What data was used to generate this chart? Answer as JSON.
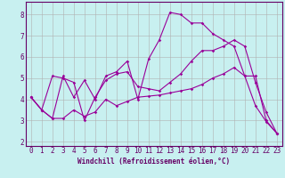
{
  "xlabel": "Windchill (Refroidissement éolien,°C)",
  "bg_color": "#c8f0f0",
  "line_color": "#990099",
  "grid_color": "#b0b0b0",
  "axis_color": "#660066",
  "spine_color": "#660066",
  "xlim": [
    -0.5,
    23.5
  ],
  "ylim": [
    1.8,
    8.6
  ],
  "xticks": [
    0,
    1,
    2,
    3,
    4,
    5,
    6,
    7,
    8,
    9,
    10,
    11,
    12,
    13,
    14,
    15,
    16,
    17,
    18,
    19,
    20,
    21,
    22,
    23
  ],
  "yticks": [
    2,
    3,
    4,
    5,
    6,
    7,
    8
  ],
  "line1_x": [
    0,
    1,
    2,
    3,
    4,
    5,
    6,
    7,
    8,
    9,
    10,
    11,
    12,
    13,
    14,
    15,
    16,
    17,
    18,
    19,
    20,
    21,
    22,
    23
  ],
  "line1_y": [
    4.1,
    3.5,
    3.1,
    5.1,
    4.1,
    4.9,
    4.0,
    5.1,
    5.3,
    5.8,
    4.0,
    5.9,
    6.8,
    8.1,
    8.0,
    7.6,
    7.6,
    7.1,
    6.8,
    6.5,
    5.1,
    3.7,
    2.95,
    2.4
  ],
  "line2_x": [
    0,
    1,
    2,
    3,
    4,
    5,
    6,
    7,
    8,
    9,
    10,
    11,
    12,
    13,
    14,
    15,
    16,
    17,
    18,
    19,
    20,
    21,
    22,
    23
  ],
  "line2_y": [
    4.1,
    3.5,
    3.1,
    3.1,
    3.5,
    3.2,
    3.4,
    4.0,
    3.7,
    3.9,
    4.1,
    4.15,
    4.2,
    4.3,
    4.4,
    4.5,
    4.7,
    5.0,
    5.2,
    5.5,
    5.1,
    5.1,
    3.0,
    2.4
  ],
  "line3_x": [
    0,
    1,
    2,
    3,
    4,
    5,
    6,
    7,
    8,
    9,
    10,
    11,
    12,
    13,
    14,
    15,
    16,
    17,
    18,
    19,
    20,
    21,
    22,
    23
  ],
  "line3_y": [
    4.1,
    3.5,
    5.1,
    5.0,
    4.8,
    3.0,
    4.1,
    4.9,
    5.2,
    5.3,
    4.6,
    4.5,
    4.4,
    4.8,
    5.2,
    5.8,
    6.3,
    6.3,
    6.5,
    6.8,
    6.5,
    4.8,
    3.4,
    2.4
  ],
  "tick_fontsize": 5.5,
  "xlabel_fontsize": 5.5,
  "marker_size": 1.8,
  "line_width": 0.8
}
